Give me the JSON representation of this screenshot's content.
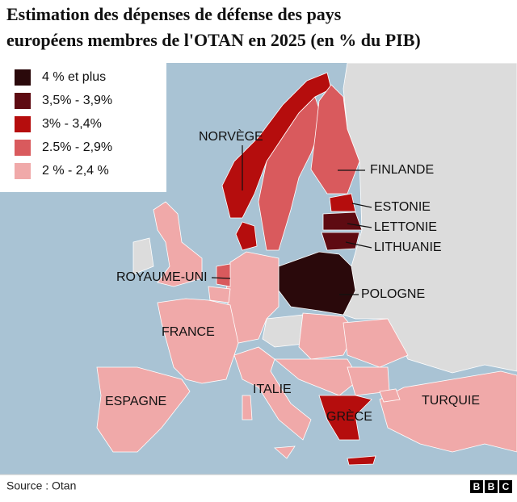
{
  "title": [
    "Estimation des dépenses de défense des pays",
    "européens membres de l'OTAN en 2025 (en % du PIB)"
  ],
  "legend": [
    {
      "label": "4 % et plus",
      "color": "#2a090b"
    },
    {
      "label": "3,5% - 3,9%",
      "color": "#5e0b12"
    },
    {
      "label": "3% - 3,4%",
      "color": "#b50d0d"
    },
    {
      "label": "2.5% - 2,9%",
      "color": "#d95a5d"
    },
    {
      "label": "2 % - 2,4 %",
      "color": "#f0a9a9"
    }
  ],
  "labels": [
    "NORVÈGE",
    "FINLANDE",
    "ESTONIE",
    "LETTONIE",
    "LITHUANIE",
    "ROYAUME-UNI",
    "POLOGNE",
    "FRANCE",
    "ITALIE",
    "ESPAGNE",
    "GRÈCE",
    "TURQUIE"
  ],
  "source": "Source : Otan",
  "logo": [
    "B",
    "B",
    "C"
  ]
}
